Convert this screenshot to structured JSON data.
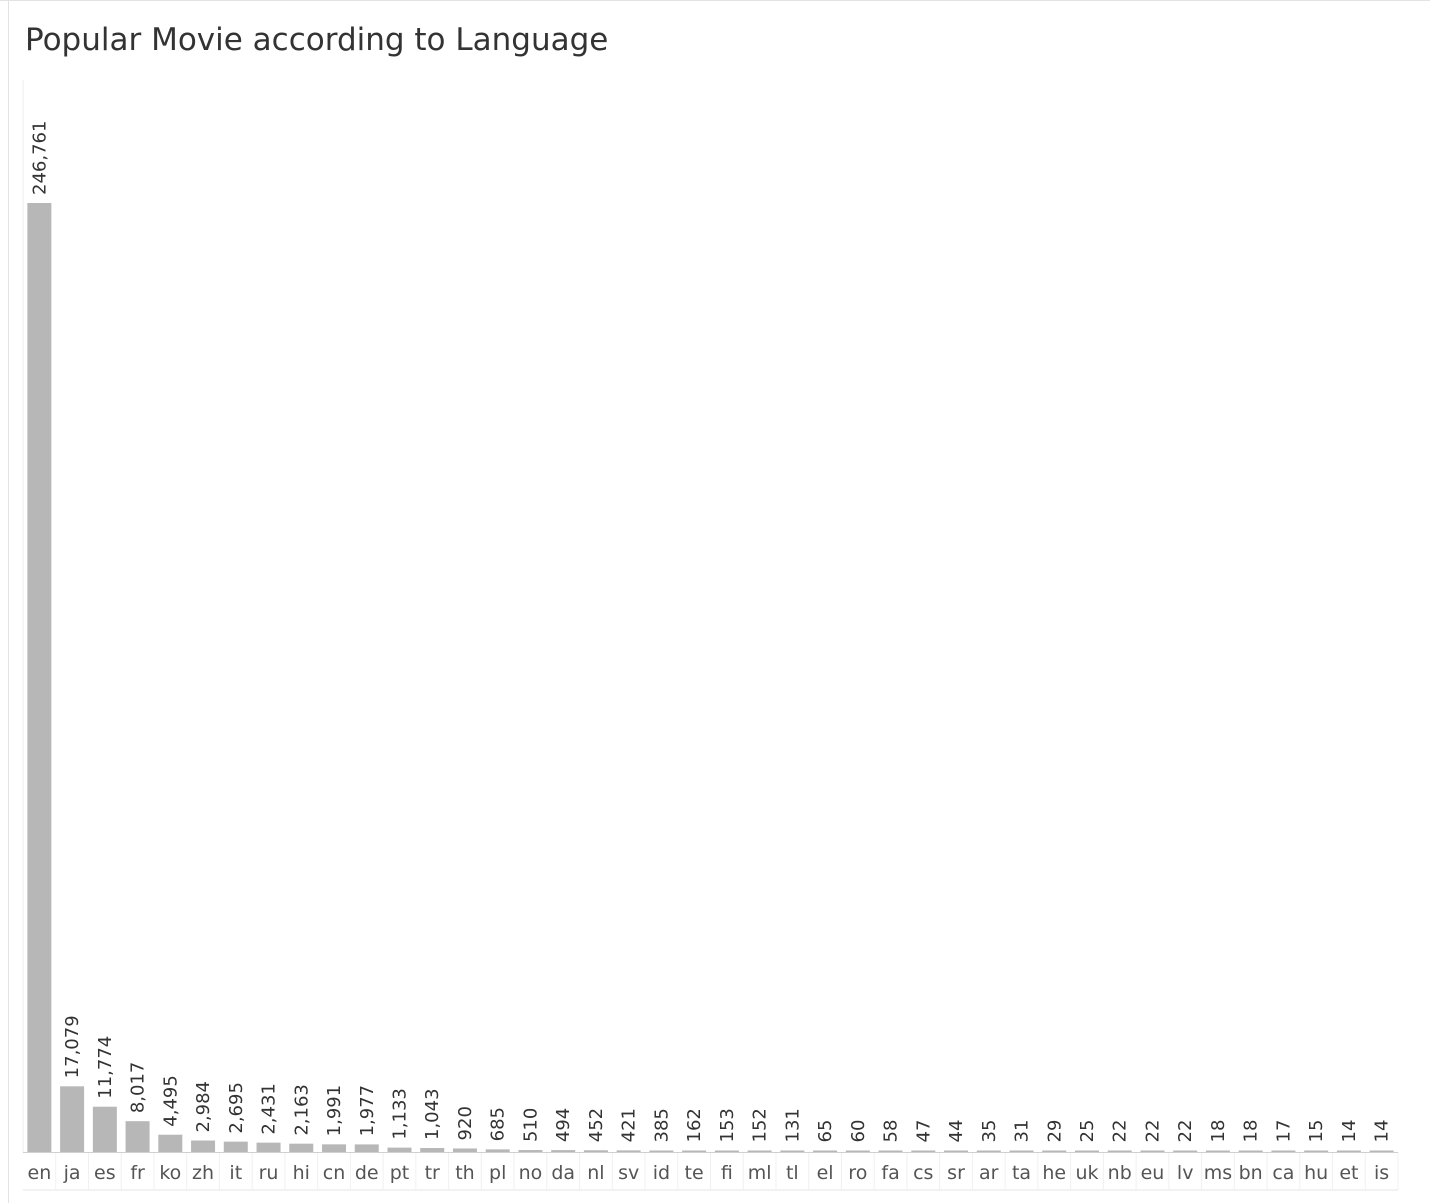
{
  "chart_data": {
    "type": "bar",
    "title": "Popular Movie according to Language",
    "xlabel": "",
    "ylabel": "",
    "ylim": [
      0,
      246761
    ],
    "grid": false,
    "bar_color": "#b7b7b7",
    "categories": [
      "en",
      "ja",
      "es",
      "fr",
      "ko",
      "zh",
      "it",
      "ru",
      "hi",
      "cn",
      "de",
      "pt",
      "tr",
      "th",
      "pl",
      "no",
      "da",
      "nl",
      "sv",
      "id",
      "te",
      "fi",
      "ml",
      "tl",
      "el",
      "ro",
      "fa",
      "cs",
      "sr",
      "ar",
      "ta",
      "he",
      "uk",
      "nb",
      "eu",
      "lv",
      "ms",
      "bn",
      "ca",
      "hu",
      "et",
      "is"
    ],
    "values": [
      246761,
      17079,
      11774,
      8017,
      4495,
      2984,
      2695,
      2431,
      2163,
      1991,
      1977,
      1133,
      1043,
      920,
      685,
      510,
      494,
      452,
      421,
      385,
      162,
      153,
      152,
      131,
      65,
      60,
      58,
      47,
      44,
      35,
      31,
      29,
      25,
      22,
      22,
      22,
      18,
      18,
      17,
      15,
      14,
      14
    ],
    "value_labels": [
      "246,761",
      "17,079",
      "11,774",
      "8,017",
      "4,495",
      "2,984",
      "2,695",
      "2,431",
      "2,163",
      "1,991",
      "1,977",
      "1,133",
      "1,043",
      "920",
      "685",
      "510",
      "494",
      "452",
      "421",
      "385",
      "162",
      "153",
      "152",
      "131",
      "65",
      "60",
      "58",
      "47",
      "44",
      "35",
      "31",
      "29",
      "25",
      "22",
      "22",
      "22",
      "18",
      "18",
      "17",
      "15",
      "14",
      "14"
    ]
  }
}
